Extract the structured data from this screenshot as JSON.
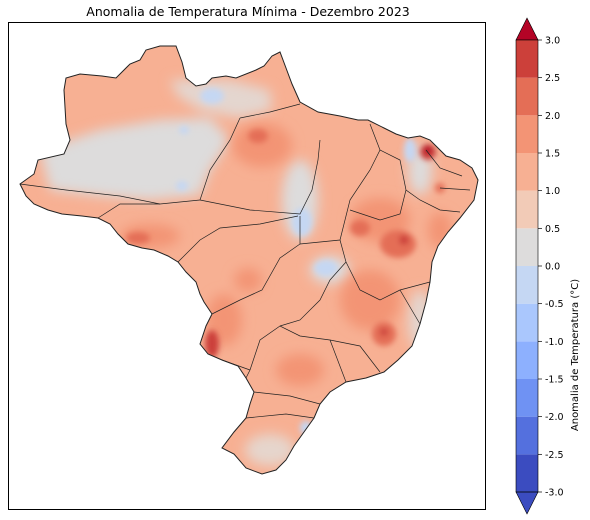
{
  "title": "Anomalia de Temperatura Mínima - Dezembro 2023",
  "colorbar": {
    "label": "Anomalia de Temperatura (°C)",
    "min": -3.0,
    "max": 3.0,
    "extend": "both",
    "ticks": [
      "-3.0",
      "-2.5",
      "-2.0",
      "-1.5",
      "-1.0",
      "-0.5",
      "0.0",
      "0.5",
      "1.0",
      "1.5",
      "2.0",
      "2.5",
      "3.0"
    ],
    "bins": [
      {
        "from": -3.0,
        "to": -2.5,
        "color": "#3b4cc0"
      },
      {
        "from": -2.5,
        "to": -2.0,
        "color": "#5470de"
      },
      {
        "from": -2.0,
        "to": -1.5,
        "color": "#6f92f3"
      },
      {
        "from": -1.5,
        "to": -1.0,
        "color": "#8db0fe"
      },
      {
        "from": -1.0,
        "to": -0.5,
        "color": "#aac7fd"
      },
      {
        "from": -0.5,
        "to": 0.0,
        "color": "#c5d7f3"
      },
      {
        "from": 0.0,
        "to": 0.5,
        "color": "#dddcdc"
      },
      {
        "from": 0.5,
        "to": 1.0,
        "color": "#f2cbb7"
      },
      {
        "from": 1.0,
        "to": 1.5,
        "color": "#f7b093"
      },
      {
        "from": 1.5,
        "to": 2.0,
        "color": "#f39475"
      },
      {
        "from": 2.0,
        "to": 2.5,
        "color": "#e46e56"
      },
      {
        "from": 2.5,
        "to": 3.0,
        "color": "#cc403a"
      }
    ],
    "under_color": "#3b4cc0",
    "over_color": "#b40426"
  },
  "map": {
    "region": "Brasil",
    "dominant_anomaly_range": "0.5 a 1.5 °C",
    "hotspots": [
      {
        "area": "Ceará (norte)",
        "anomaly_class": "> 3.0"
      },
      {
        "area": "Bahia (centro-sul)",
        "anomaly_class": "2.0 a 3.0"
      },
      {
        "area": "Minas Gerais (leste)",
        "anomaly_class": "2.0 a 3.0"
      },
      {
        "area": "Mato Grosso do Sul (sudoeste)",
        "anomaly_class": "2.0 a 3.0"
      },
      {
        "area": "Acre",
        "anomaly_class": "1.5 a 2.5"
      }
    ],
    "cool_spots": [
      {
        "area": "Amazonas (nordeste)",
        "anomaly_class": "-0.5 a 0.0"
      },
      {
        "area": "Tocantins (leste)",
        "anomaly_class": "-0.5 a 0.0"
      },
      {
        "area": "Santa Catarina (leste)",
        "anomaly_class": "-0.5 a 0.0"
      }
    ]
  }
}
